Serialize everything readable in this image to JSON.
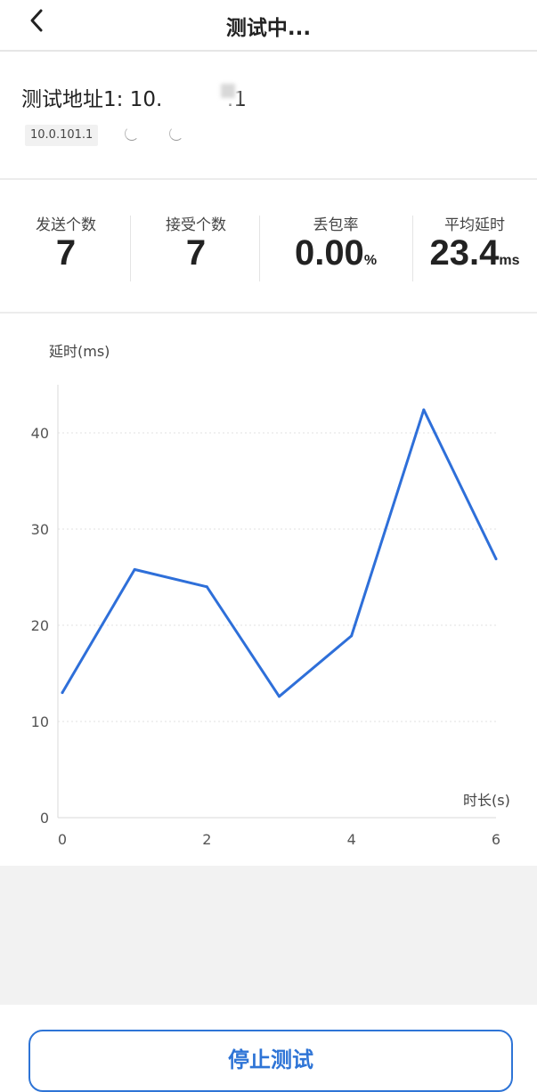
{
  "header": {
    "title": "测试中...",
    "back_icon": "chevron-left-icon"
  },
  "address": {
    "label": "测试地址1:",
    "value_prefix": "10.",
    "value_suffix": ".1",
    "chip_ip": "10.0.101.1",
    "loading_icons": [
      "spinner-icon",
      "spinner-icon"
    ]
  },
  "stats": [
    {
      "label": "发送个数",
      "value": "7",
      "unit": ""
    },
    {
      "label": "接受个数",
      "value": "7",
      "unit": ""
    },
    {
      "label": "丢包率",
      "value": "0.00",
      "unit": "%"
    },
    {
      "label": "平均延时",
      "value": "23.4",
      "unit": "ms"
    }
  ],
  "chart_data": {
    "type": "line",
    "ylabel": "延时(ms)",
    "xlabel": "时长(s)",
    "x": [
      0,
      1,
      2,
      3,
      4,
      5,
      6
    ],
    "series": [
      {
        "values": [
          13,
          25.8,
          24,
          12.6,
          18.9,
          42.4,
          26.9
        ]
      }
    ],
    "xticks": [
      "0",
      "2",
      "4",
      "6"
    ],
    "yticks": [
      "0",
      "10",
      "20",
      "30",
      "40"
    ],
    "xlim": [
      0,
      6
    ],
    "ylim": [
      0,
      45
    ],
    "grid": true,
    "line_color": "#2e6fd9"
  },
  "footer": {
    "stop_label": "停止测试"
  },
  "colors": {
    "accent": "#2e74d6"
  }
}
